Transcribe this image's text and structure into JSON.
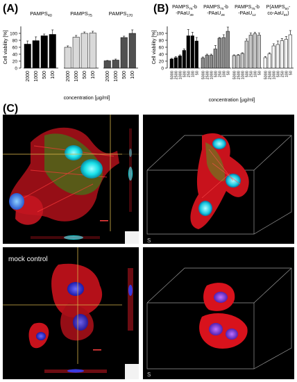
{
  "panels": {
    "a": "(A)",
    "b": "(B)",
    "c": "(C)"
  },
  "mock_control_label": "mock control",
  "colors": {
    "black": "#000000",
    "dark_gray": "#505050",
    "mid_gray": "#8a8a8a",
    "light_gray": "#d9d9d9",
    "cell_red": "#d8121c",
    "nucleus_cyan": "#18e0e8",
    "nucleus_blue": "#2a2ad0",
    "tubulin_green": "#5bb02a"
  },
  "chart_data": [
    {
      "type": "bar",
      "panel": "A",
      "ylabel": "Cell viability [%]",
      "xlabel": "concentration [µg/ml]",
      "ylim": [
        0,
        120
      ],
      "yticks": [
        0,
        20,
        40,
        60,
        80,
        100
      ],
      "grid": false,
      "categories": [
        "2000",
        "1000",
        "500",
        "100"
      ],
      "series": [
        {
          "name": "PAMPS40",
          "name_main": "PAMPS",
          "name_sub": "40",
          "color": "#000000",
          "values": [
            69,
            79,
            93,
            97
          ],
          "errors": [
            9,
            11,
            5,
            13
          ]
        },
        {
          "name": "PAMPS75",
          "name_main": "PAMPS",
          "name_sub": "75",
          "color": "#d9d9d9",
          "values": [
            60,
            89,
            100,
            101
          ],
          "errors": [
            4,
            5,
            4,
            5
          ]
        },
        {
          "name": "PAMPS170",
          "name_main": "PAMPS",
          "name_sub": "170",
          "color": "#505050",
          "values": [
            21,
            23,
            88,
            100
          ],
          "errors": [
            1,
            3,
            4,
            10
          ]
        }
      ]
    },
    {
      "type": "bar",
      "panel": "B",
      "ylabel": "Cell viability [%]",
      "xlabel": "concentration [µg/ml]",
      "ylim": [
        0,
        120
      ],
      "yticks": [
        0,
        20,
        40,
        60,
        80,
        100
      ],
      "grid": false,
      "categories": [
        "5000",
        "2500",
        "1000",
        "500",
        "250",
        "100",
        "50"
      ],
      "series": [
        {
          "name": "PAMPS75-b-PAaU39",
          "name_main": [
            "PAMPS",
            "-b"
          ],
          "name_sub": [
            "75",
            ""
          ],
          "name_line2": [
            "-PAaU",
            "39"
          ],
          "color": "#000000",
          "values": [
            26,
            30,
            35,
            51,
            93,
            93,
            78
          ],
          "errors": [
            2,
            3,
            3,
            4,
            18,
            10,
            10
          ]
        },
        {
          "name": "PAMPS75-b-PAaU28",
          "name_main": [
            "PAMPS",
            "-b"
          ],
          "name_sub": [
            "75",
            ""
          ],
          "name_line2": [
            "-PAaU",
            "28"
          ],
          "color": "#8a8a8a",
          "values": [
            29,
            37,
            37,
            55,
            86,
            88,
            106
          ],
          "errors": [
            3,
            3,
            3,
            10,
            2,
            8,
            12
          ]
        },
        {
          "name": "PAMPS75-b-PAaU12",
          "name_main": [
            "PAMPS",
            "-b"
          ],
          "name_sub": [
            "75",
            ""
          ],
          "name_line2": [
            "-PAaU",
            "12"
          ],
          "color": "#c8c8c8",
          "values": [
            36,
            37,
            42,
            78,
            95,
            99,
            95
          ],
          "errors": [
            2,
            2,
            2,
            6,
            6,
            4,
            6
          ]
        },
        {
          "name": "P(AMPS50-co-AaU50)",
          "name_main": [
            "P(AMPS",
            "-"
          ],
          "name_sub": [
            "50",
            ""
          ],
          "name_line2": [
            "co-AaU",
            "50",
            ")"
          ],
          "color": "#f4f4f4",
          "values": [
            30,
            41,
            64,
            68,
            79,
            83,
            96
          ],
          "errors": [
            3,
            3,
            6,
            10,
            6,
            8,
            12
          ]
        }
      ]
    }
  ]
}
